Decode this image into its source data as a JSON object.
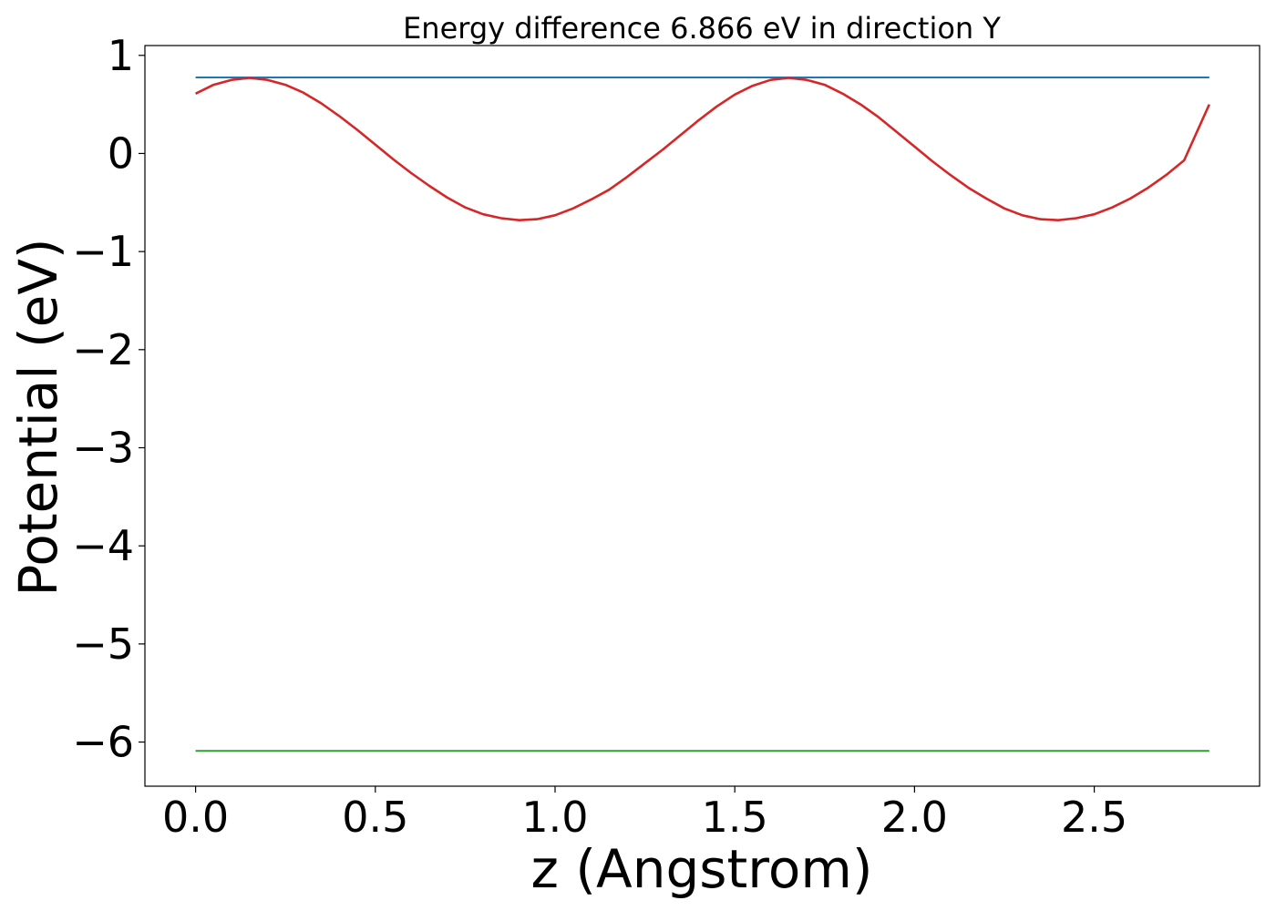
{
  "chart_data": {
    "type": "line",
    "title": "Energy difference 6.866 eV in direction Y",
    "xlabel": "z (Angstrom)",
    "ylabel": "Potential (eV)",
    "xlim": [
      -0.141,
      2.96
    ],
    "ylim": [
      -6.45,
      1.1
    ],
    "xticks": [
      0.0,
      0.5,
      1.0,
      1.5,
      2.0,
      2.5
    ],
    "xtick_labels": [
      "0.0",
      "0.5",
      "1.0",
      "1.5",
      "2.0",
      "2.5"
    ],
    "yticks": [
      1,
      0,
      -1,
      -2,
      -3,
      -4,
      -5,
      -6
    ],
    "ytick_labels": [
      "1",
      "0",
      "−1",
      "−2",
      "−3",
      "−4",
      "−5",
      "−6"
    ],
    "grid": false,
    "series": [
      {
        "color": "#1f77b4",
        "x": [
          0.0,
          2.82
        ],
        "y": [
          0.775,
          0.775
        ]
      },
      {
        "color": "#d62728",
        "x": [
          0.0,
          0.05,
          0.1,
          0.15,
          0.2,
          0.25,
          0.3,
          0.35,
          0.4,
          0.45,
          0.5,
          0.55,
          0.6,
          0.65,
          0.7,
          0.75,
          0.8,
          0.85,
          0.9,
          0.95,
          1.0,
          1.05,
          1.1,
          1.15,
          1.2,
          1.25,
          1.3,
          1.35,
          1.4,
          1.45,
          1.5,
          1.55,
          1.6,
          1.65,
          1.7,
          1.75,
          1.8,
          1.85,
          1.9,
          1.95,
          2.0,
          2.05,
          2.1,
          2.15,
          2.2,
          2.25,
          2.3,
          2.35,
          2.4,
          2.45,
          2.5,
          2.55,
          2.6,
          2.65,
          2.7,
          2.75,
          2.82
        ],
        "y": [
          0.61,
          0.7,
          0.75,
          0.77,
          0.75,
          0.7,
          0.62,
          0.51,
          0.38,
          0.24,
          0.09,
          -0.06,
          -0.2,
          -0.33,
          -0.45,
          -0.55,
          -0.62,
          -0.66,
          -0.68,
          -0.67,
          -0.63,
          -0.56,
          -0.47,
          -0.37,
          -0.24,
          -0.1,
          0.04,
          0.19,
          0.34,
          0.48,
          0.6,
          0.69,
          0.75,
          0.77,
          0.75,
          0.7,
          0.61,
          0.5,
          0.37,
          0.22,
          0.07,
          -0.08,
          -0.22,
          -0.35,
          -0.46,
          -0.56,
          -0.63,
          -0.67,
          -0.68,
          -0.66,
          -0.62,
          -0.55,
          -0.46,
          -0.35,
          -0.22,
          -0.07,
          0.5
        ]
      },
      {
        "color": "#2ca02c",
        "x": [
          0.0,
          2.82
        ],
        "y": [
          -6.09,
          -6.09
        ]
      }
    ]
  }
}
